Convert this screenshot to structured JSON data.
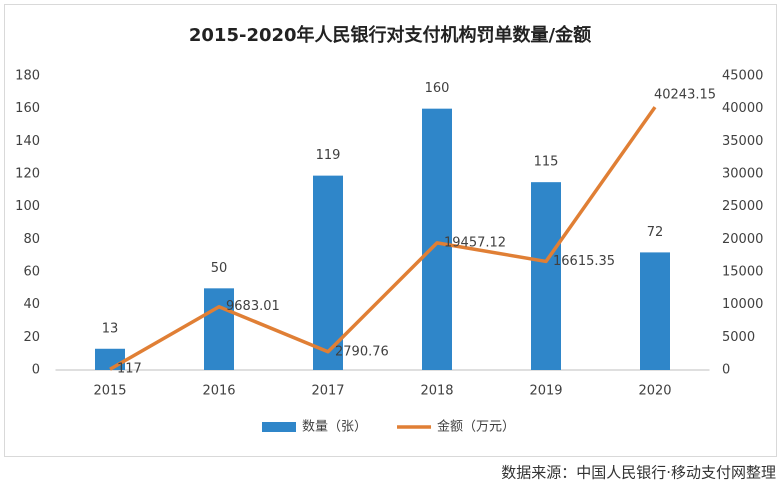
{
  "chart_data": {
    "type": "bar-line",
    "title": "2015-2020年人民银行对支付机构罚单数量/金额",
    "categories": [
      "2015",
      "2016",
      "2017",
      "2018",
      "2019",
      "2020"
    ],
    "series": [
      {
        "name": "数量（张）",
        "type": "bar",
        "color": "#2f86c9",
        "values": [
          13,
          50,
          119,
          160,
          115,
          72
        ]
      },
      {
        "name": "金额（万元）",
        "type": "line",
        "axis": "y2",
        "color": "#e07f35",
        "values": [
          117,
          9683.01,
          2790.76,
          19457.12,
          16615.35,
          40243.15
        ]
      }
    ],
    "ylim": [
      0,
      180
    ],
    "yticks": [
      0,
      20,
      40,
      60,
      80,
      100,
      120,
      140,
      160,
      180
    ],
    "y2lim": [
      0,
      45000
    ],
    "y2ticks": [
      0,
      5000,
      10000,
      15000,
      20000,
      25000,
      30000,
      35000,
      40000,
      45000
    ],
    "grid": false,
    "legend": "bottom",
    "source": "数据来源：中国人民银行·移动支付网整理"
  }
}
